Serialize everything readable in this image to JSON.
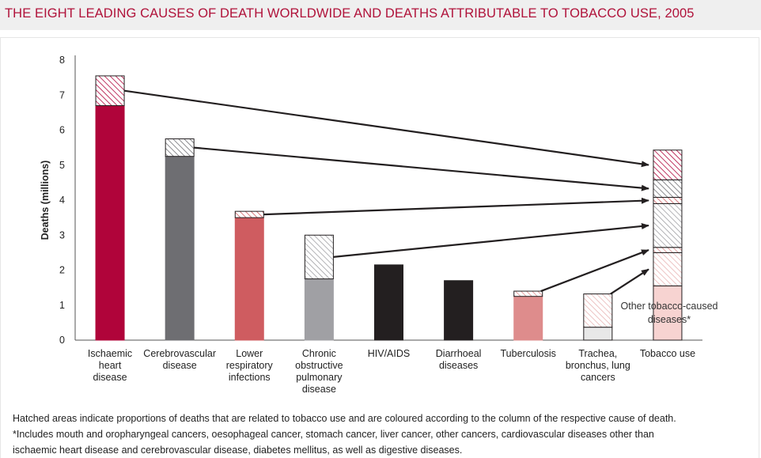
{
  "title": "THE EIGHT LEADING CAUSES OF DEATH WORLDWIDE AND DEATHS ATTRIBUTABLE TO TOBACCO USE, 2005",
  "notes": {
    "line1": "Hatched areas indicate proportions of deaths that are related to tobacco use and are coloured according to the column of the respective cause of death.",
    "line2": "*Includes mouth and oropharyngeal cancers, oesophageal cancer, stomach cancer, liver cancer, other cancers, cardiovascular diseases other than",
    "line3": "ischaemic heart disease and cerebrovascular disease, diabetes mellitus, as well as digestive diseases."
  },
  "chart_data": {
    "type": "bar",
    "stacked": true,
    "ylabel": "Deaths (millions)",
    "ylim": [
      0,
      8
    ],
    "yticks": [
      "0",
      "1",
      "2",
      "3",
      "4",
      "5",
      "6",
      "7",
      "8"
    ],
    "categories": [
      "Ischaemic heart disease",
      "Cerebrovascular disease",
      "Lower respiratory infections",
      "Chronic obstructive pulmonary disease",
      "HIV/AIDS",
      "Diarrhoeal diseases",
      "Tuberculosis",
      "Trachea, bronchus, lung cancers",
      "Tobacco use"
    ],
    "category_lines": [
      [
        "Ischaemic",
        "heart",
        "disease"
      ],
      [
        "Cerebrovascular",
        "disease"
      ],
      [
        "Lower",
        "respiratory",
        "infections"
      ],
      [
        "Chronic",
        "obstructive",
        "pulmonary",
        "disease"
      ],
      [
        "HIV/AIDS"
      ],
      [
        "Diarrhoeal",
        "diseases"
      ],
      [
        "Tuberculosis"
      ],
      [
        "Trachea,",
        "bronchus, lung",
        "cancers"
      ],
      [
        "Tobacco use"
      ]
    ],
    "cause_colors": [
      "#b0043a",
      "#6e6e72",
      "#cf5c60",
      "#a0a0a4",
      "#231f20",
      "#231f20",
      "#de8c8c",
      "#e8e8e8"
    ],
    "non_tobacco_deaths": [
      6.7,
      5.25,
      3.5,
      1.75,
      2.15,
      1.7,
      1.25,
      0.37
    ],
    "tobacco_deaths": [
      0.85,
      0.5,
      0.18,
      1.25,
      0,
      0,
      0.15,
      0.95
    ],
    "tobacco_use_stack": [
      {
        "label": "Other tobacco-caused diseases*",
        "value": 1.55,
        "color": "#f7d3d1",
        "hatched": false
      },
      {
        "label": "Trachea, bronchus, lung cancers",
        "value": 0.95,
        "color": "#e8e8e8",
        "hatched": true
      },
      {
        "label": "Tuberculosis",
        "value": 0.15,
        "color": "#de8c8c",
        "hatched": true
      },
      {
        "label": "Chronic obstructive pulmonary disease",
        "value": 1.25,
        "color": "#a0a0a4",
        "hatched": true
      },
      {
        "label": "Lower respiratory infections",
        "value": 0.18,
        "color": "#cf5c60",
        "hatched": true
      },
      {
        "label": "Cerebrovascular disease",
        "value": 0.5,
        "color": "#6e6e72",
        "hatched": true
      },
      {
        "label": "Ischaemic heart disease",
        "value": 0.85,
        "color": "#b0043a",
        "hatched": true
      }
    ],
    "annotation": "Other tobacco-caused diseases*",
    "annotation_lines": [
      "Other tobacco-caused",
      "diseases*"
    ]
  }
}
